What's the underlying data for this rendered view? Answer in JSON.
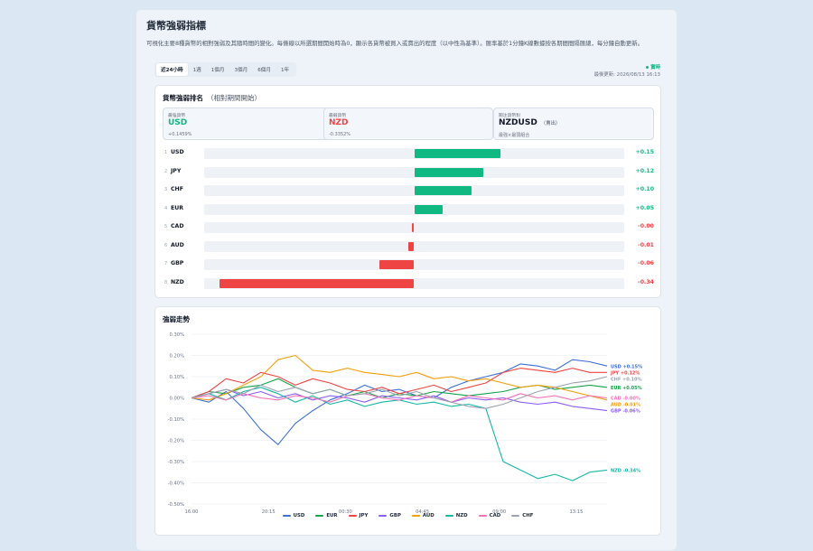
{
  "header": {
    "title": "貨幣強弱指標",
    "description": "可視化主要8種貨幣的相對強弱及其隨時間的變化。每條線以所選期間開始時為0，顯示各貨幣被買入或賣出的程度（以中性為基準）。匯率基於1分鐘K線數據按各期間間隔匯總，每分鐘自動更新。"
  },
  "tabs": [
    {
      "label": "近24小時",
      "active": true
    },
    {
      "label": "1週",
      "active": false
    },
    {
      "label": "1個月",
      "active": false
    },
    {
      "label": "3個月",
      "active": false
    },
    {
      "label": "6個月",
      "active": false
    },
    {
      "label": "1年",
      "active": false
    }
  ],
  "status": {
    "live": "實時",
    "updated": "最後更新: 2026/08/13 16:13"
  },
  "ranking": {
    "title": "貨幣強弱排名",
    "subtitle": "（相對期間開始）",
    "strongest": {
      "label": "最強貨幣",
      "currency": "USD",
      "value": "+0.1459%"
    },
    "weakest": {
      "label": "最弱貨幣",
      "currency": "NZD",
      "value": "-0.3352%"
    },
    "pair": {
      "label": "關注貨幣對",
      "pair": "NZDUSD",
      "note": "（賣出）",
      "foot": "最強×最弱組合"
    },
    "rows": [
      {
        "rank": "1",
        "currency": "USD",
        "value": 0.15,
        "label": "+0.15"
      },
      {
        "rank": "2",
        "currency": "JPY",
        "value": 0.12,
        "label": "+0.12"
      },
      {
        "rank": "3",
        "currency": "CHF",
        "value": 0.1,
        "label": "+0.10"
      },
      {
        "rank": "4",
        "currency": "EUR",
        "value": 0.05,
        "label": "+0.05"
      },
      {
        "rank": "5",
        "currency": "CAD",
        "value": -0.004,
        "label": "-0.00"
      },
      {
        "rank": "6",
        "currency": "AUD",
        "value": -0.01,
        "label": "-0.01"
      },
      {
        "rank": "7",
        "currency": "GBP",
        "value": -0.06,
        "label": "-0.06"
      },
      {
        "rank": "8",
        "currency": "NZD",
        "value": -0.34,
        "label": "-0.34"
      }
    ]
  },
  "trend": {
    "title": "強弱走勢"
  },
  "colors": {
    "positive": "#10b981",
    "negative": "#ef4444"
  },
  "chart_data": {
    "type": "line",
    "title": "強弱走勢",
    "x": [
      "16:00",
      "17:00",
      "18:00",
      "19:00",
      "20:00",
      "21:00",
      "22:00",
      "23:00",
      "00:00",
      "01:00",
      "02:00",
      "03:00",
      "04:00",
      "05:00",
      "06:00",
      "07:00",
      "08:00",
      "09:00",
      "10:00",
      "11:00",
      "12:00",
      "13:00",
      "14:00",
      "15:00",
      "16:00"
    ],
    "x_tick_labels": [
      "16:00",
      "20:15",
      "00:30",
      "04:45",
      "09:00",
      "13:15"
    ],
    "ylim": [
      -0.5,
      0.3
    ],
    "y_ticks": [
      "0.30%",
      "0.20%",
      "0.10%",
      "0.00%",
      "-0.10%",
      "-0.20%",
      "-0.30%",
      "-0.40%",
      "-0.50%"
    ],
    "grid": true,
    "legend_position": "bottom",
    "series": [
      {
        "name": "USD",
        "color": "#3b6fd6",
        "end_label": "USD +0.15%",
        "values": [
          0.0,
          -0.02,
          0.03,
          -0.05,
          -0.15,
          -0.22,
          -0.12,
          -0.06,
          -0.01,
          0.02,
          0.06,
          0.03,
          0.04,
          0.01,
          0.0,
          0.05,
          0.08,
          0.1,
          0.12,
          0.16,
          0.15,
          0.13,
          0.18,
          0.17,
          0.15
        ]
      },
      {
        "name": "EUR",
        "color": "#16a34a",
        "end_label": "EUR +0.05%",
        "values": [
          0.0,
          0.03,
          0.02,
          0.05,
          0.06,
          0.09,
          0.05,
          0.02,
          0.04,
          0.01,
          0.03,
          0.0,
          0.02,
          0.01,
          0.03,
          0.02,
          0.01,
          0.02,
          0.03,
          0.05,
          0.06,
          0.04,
          0.05,
          0.06,
          0.05
        ]
      },
      {
        "name": "JPY",
        "color": "#ef4444",
        "end_label": "JPY +0.12%",
        "values": [
          0.0,
          0.03,
          0.09,
          0.07,
          0.12,
          0.1,
          0.06,
          0.09,
          0.07,
          0.04,
          0.03,
          0.05,
          0.02,
          0.04,
          0.06,
          0.03,
          0.05,
          0.07,
          0.12,
          0.14,
          0.13,
          0.12,
          0.14,
          0.12,
          0.12
        ]
      },
      {
        "name": "GBP",
        "color": "#8b5cf6",
        "end_label": "GBP -0.06%",
        "values": [
          0.0,
          0.02,
          0.04,
          0.01,
          0.03,
          0.0,
          0.02,
          -0.01,
          0.01,
          0.0,
          -0.02,
          0.01,
          0.0,
          -0.01,
          0.01,
          -0.02,
          0.0,
          -0.01,
          0.0,
          -0.02,
          -0.03,
          -0.02,
          -0.04,
          -0.05,
          -0.06
        ]
      },
      {
        "name": "AUD",
        "color": "#f59e0b",
        "end_label": "AUD -0.01%",
        "values": [
          0.0,
          -0.01,
          0.02,
          0.06,
          0.1,
          0.18,
          0.2,
          0.13,
          0.12,
          0.14,
          0.12,
          0.11,
          0.1,
          0.12,
          0.09,
          0.1,
          0.08,
          0.09,
          0.07,
          0.05,
          0.06,
          0.05,
          0.03,
          0.01,
          -0.01
        ]
      },
      {
        "name": "NZD",
        "color": "#14b8a6",
        "end_label": "NZD -0.34%",
        "values": [
          0.0,
          0.02,
          -0.01,
          0.03,
          0.05,
          0.02,
          -0.02,
          0.01,
          -0.03,
          -0.01,
          -0.04,
          -0.02,
          -0.01,
          -0.03,
          -0.02,
          -0.04,
          -0.03,
          -0.05,
          -0.3,
          -0.34,
          -0.38,
          -0.36,
          -0.39,
          -0.35,
          -0.34
        ]
      },
      {
        "name": "CAD",
        "color": "#f472b6",
        "end_label": "CAD -0.00%",
        "values": [
          0.0,
          0.01,
          -0.01,
          0.02,
          0.0,
          -0.01,
          0.01,
          0.0,
          -0.02,
          0.01,
          0.02,
          0.0,
          -0.01,
          0.01,
          0.0,
          -0.02,
          0.01,
          0.0,
          -0.01,
          0.02,
          0.0,
          0.01,
          -0.01,
          0.01,
          0.0
        ]
      },
      {
        "name": "CHF",
        "color": "#9ca3af",
        "end_label": "CHF +0.10%",
        "values": [
          0.0,
          0.02,
          0.04,
          0.02,
          0.06,
          0.03,
          0.05,
          0.02,
          0.04,
          0.01,
          0.02,
          0.04,
          0.01,
          0.03,
          0.0,
          -0.02,
          -0.04,
          -0.05,
          -0.03,
          0.0,
          0.03,
          0.05,
          0.07,
          0.08,
          0.1
        ]
      }
    ]
  }
}
